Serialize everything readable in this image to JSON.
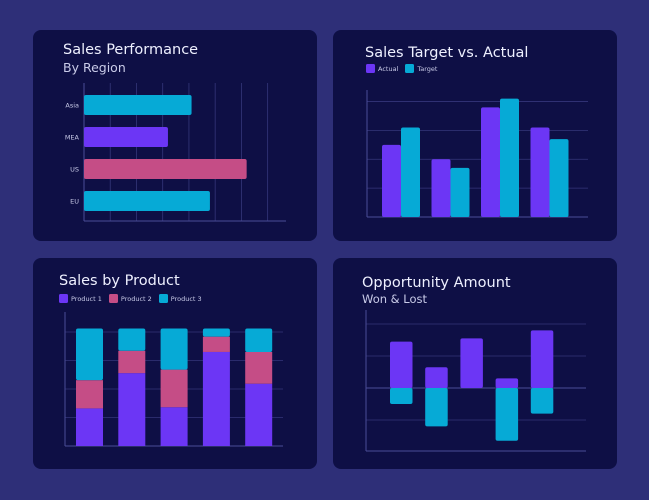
{
  "colors": {
    "background": "#2e2f78",
    "card": "#0e0f45",
    "purple": "#6c36f5",
    "cyan": "#06aad6",
    "pink": "#c54d86",
    "grid": "#34367a",
    "axis": "#4a4c98"
  },
  "chart_data": [
    {
      "id": "sales-performance",
      "type": "bar",
      "orientation": "horizontal",
      "title": "Sales Performance",
      "subtitle": "By Region",
      "categories": [
        "Asia",
        "MEA",
        "US",
        "EU"
      ],
      "values": [
        4.1,
        3.2,
        6.2,
        4.8
      ],
      "bar_colors": [
        "#06aad6",
        "#6c36f5",
        "#c54d86",
        "#06aad6"
      ],
      "xlim": [
        0,
        7.7
      ],
      "grid": true,
      "xlabel": "",
      "ylabel": ""
    },
    {
      "id": "sales-target-vs-actual",
      "type": "bar",
      "title": "Sales Target vs. Actual",
      "categories": [
        "",
        "",
        "",
        ""
      ],
      "series": [
        {
          "name": "Actual",
          "color": "#6c36f5",
          "values": [
            2.5,
            2.0,
            3.8,
            3.1
          ]
        },
        {
          "name": "Target",
          "color": "#06aad6",
          "values": [
            3.1,
            1.7,
            4.1,
            2.7
          ]
        }
      ],
      "ylim": [
        0,
        4.4
      ],
      "grid": true,
      "legend": "top-left"
    },
    {
      "id": "sales-by-product",
      "type": "bar",
      "stacked": true,
      "title": "Sales by Product",
      "categories": [
        "",
        "",
        "",
        "",
        ""
      ],
      "series": [
        {
          "name": "Product 1",
          "color": "#6c36f5",
          "values": [
            32,
            62,
            33,
            80,
            53
          ]
        },
        {
          "name": "Product 2",
          "color": "#c54d86",
          "values": [
            24,
            19,
            32,
            13,
            27
          ]
        },
        {
          "name": "Product 3",
          "color": "#06aad6",
          "values": [
            44,
            19,
            35,
            7,
            20
          ]
        }
      ],
      "ylim": [
        0,
        114
      ],
      "grid": true,
      "legend": "top-left"
    },
    {
      "id": "opportunity-amount",
      "type": "bar",
      "title": "Opportunity Amount",
      "subtitle": "Won & Lost",
      "categories": [
        "",
        "",
        "",
        "",
        ""
      ],
      "series": [
        {
          "name": "Won",
          "color": "#6c36f5",
          "values": [
            1.45,
            0.65,
            1.55,
            0.3,
            1.8
          ]
        },
        {
          "name": "Lost",
          "color": "#06aad6",
          "values": [
            -0.5,
            -1.2,
            0,
            -1.65,
            -0.8
          ]
        }
      ],
      "ylim": [
        -2,
        2.4
      ],
      "grid": true
    }
  ]
}
